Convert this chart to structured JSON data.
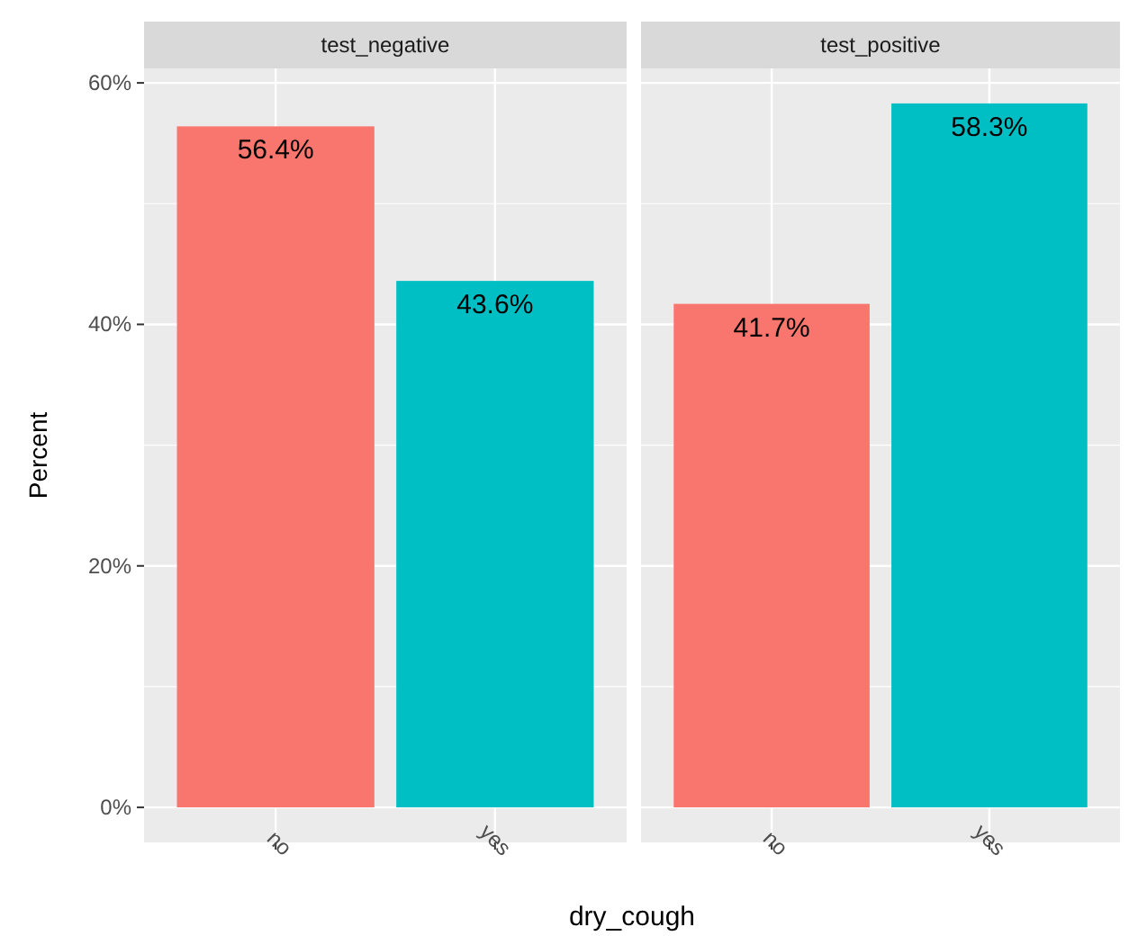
{
  "chart_data": [
    {
      "type": "bar",
      "title": "test_negative",
      "xlabel": "dry_cough",
      "ylabel": "Percent",
      "categories": [
        "no",
        "yes"
      ],
      "values": [
        56.4,
        43.6
      ],
      "colors": [
        "#f8766d",
        "#00bfc4"
      ],
      "value_labels": [
        "56.4%",
        "43.6%"
      ],
      "ylim": [
        -2.9,
        61.2
      ],
      "yticks": [
        {
          "value": 0,
          "label": "0%"
        },
        {
          "value": 10,
          "label": null
        },
        {
          "value": 20,
          "label": "20%"
        },
        {
          "value": 30,
          "label": null
        },
        {
          "value": 40,
          "label": "40%"
        },
        {
          "value": 50,
          "label": null
        },
        {
          "value": 60,
          "label": "60%"
        }
      ],
      "grid": true
    },
    {
      "type": "bar",
      "title": "test_positive",
      "categories": [
        "no",
        "yes"
      ],
      "values": [
        41.7,
        58.3
      ],
      "colors": [
        "#f8766d",
        "#00bfc4"
      ],
      "value_labels": [
        "41.7%",
        "58.3%"
      ],
      "ylim": [
        -2.9,
        61.2
      ],
      "yticks": [
        0,
        {
          "value": 10,
          "label": null
        },
        20,
        {
          "value": 30,
          "label": null
        },
        40,
        {
          "value": 50,
          "label": null
        },
        60
      ],
      "grid": true,
      "tick_labels": "x"
    }
  ]
}
